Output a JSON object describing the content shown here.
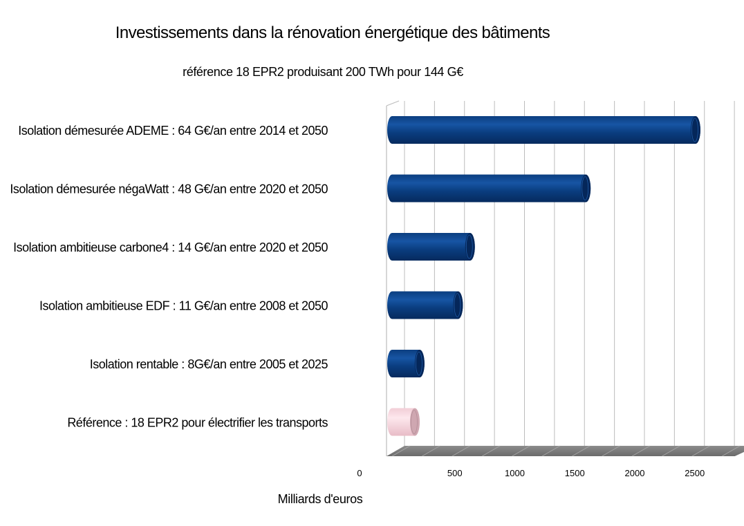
{
  "chart_data": {
    "type": "bar",
    "orientation": "horizontal",
    "style": "3d-cylinder",
    "title": "Investissements dans la rénovation énergétique des bâtiments",
    "subtitle": "référence 18 EPR2 produisant 200 TWh pour 144 G€",
    "xlabel": "Milliards d'euros",
    "ylabel": "",
    "xlim": [
      0,
      2800
    ],
    "x_ticks": [
      0,
      500,
      1000,
      1500,
      2000,
      2500
    ],
    "grid": true,
    "categories": [
      "Isolation démesurée ADEME : 64 G€/an entre 2014 et 2050",
      "Isolation démesurée négaWatt : 48 G€/an entre 2020 et 2050",
      "Isolation ambitieuse carbone4 : 14 G€/an entre 2020 et 2050",
      "Isolation ambitieuse EDF : 11 G€/an entre 2008 et 2050",
      "Isolation rentable : 8G€/an entre 2005 et 2025",
      "Référence : 18 EPR2 pour électrifier les transports"
    ],
    "values": [
      2530,
      1615,
      650,
      550,
      230,
      190
    ],
    "colors": {
      "bar": "#0a3f82",
      "bar_dark": "#05275a",
      "reference": "#f7d4dc",
      "reference_dark": "#cfa7b1",
      "grid": "#bcbcbc",
      "floor": "#7a7a7a"
    }
  }
}
